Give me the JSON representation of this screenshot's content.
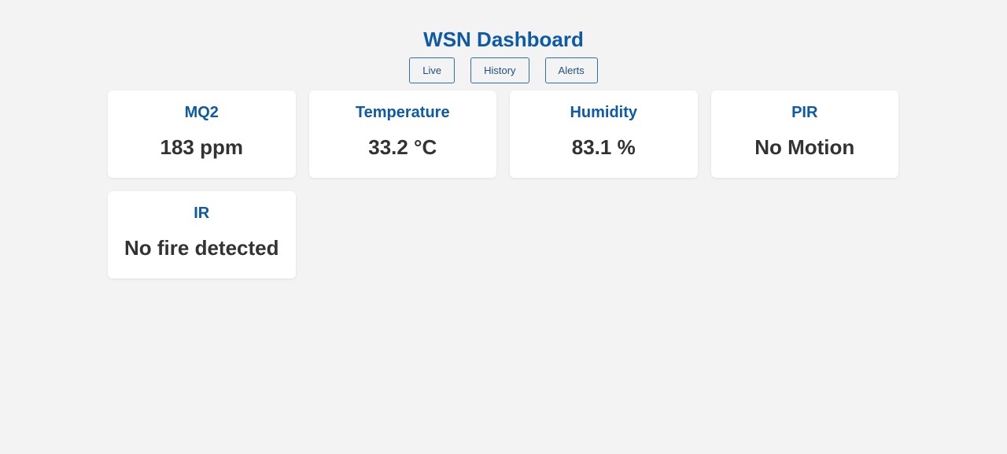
{
  "header": {
    "title": "WSN Dashboard"
  },
  "nav": {
    "live": "Live",
    "history": "History",
    "alerts": "Alerts"
  },
  "cards": [
    {
      "label": "MQ2",
      "value": "183 ppm"
    },
    {
      "label": "Temperature",
      "value": "33.2 °C"
    },
    {
      "label": "Humidity",
      "value": "83.1 %"
    },
    {
      "label": "PIR",
      "value": "No Motion"
    },
    {
      "label": "IR",
      "value": "No fire detected"
    }
  ],
  "colors": {
    "background": "#f3f3f3",
    "accent": "#0d5aa7",
    "value_text": "#333333",
    "card_bg": "#ffffff"
  }
}
